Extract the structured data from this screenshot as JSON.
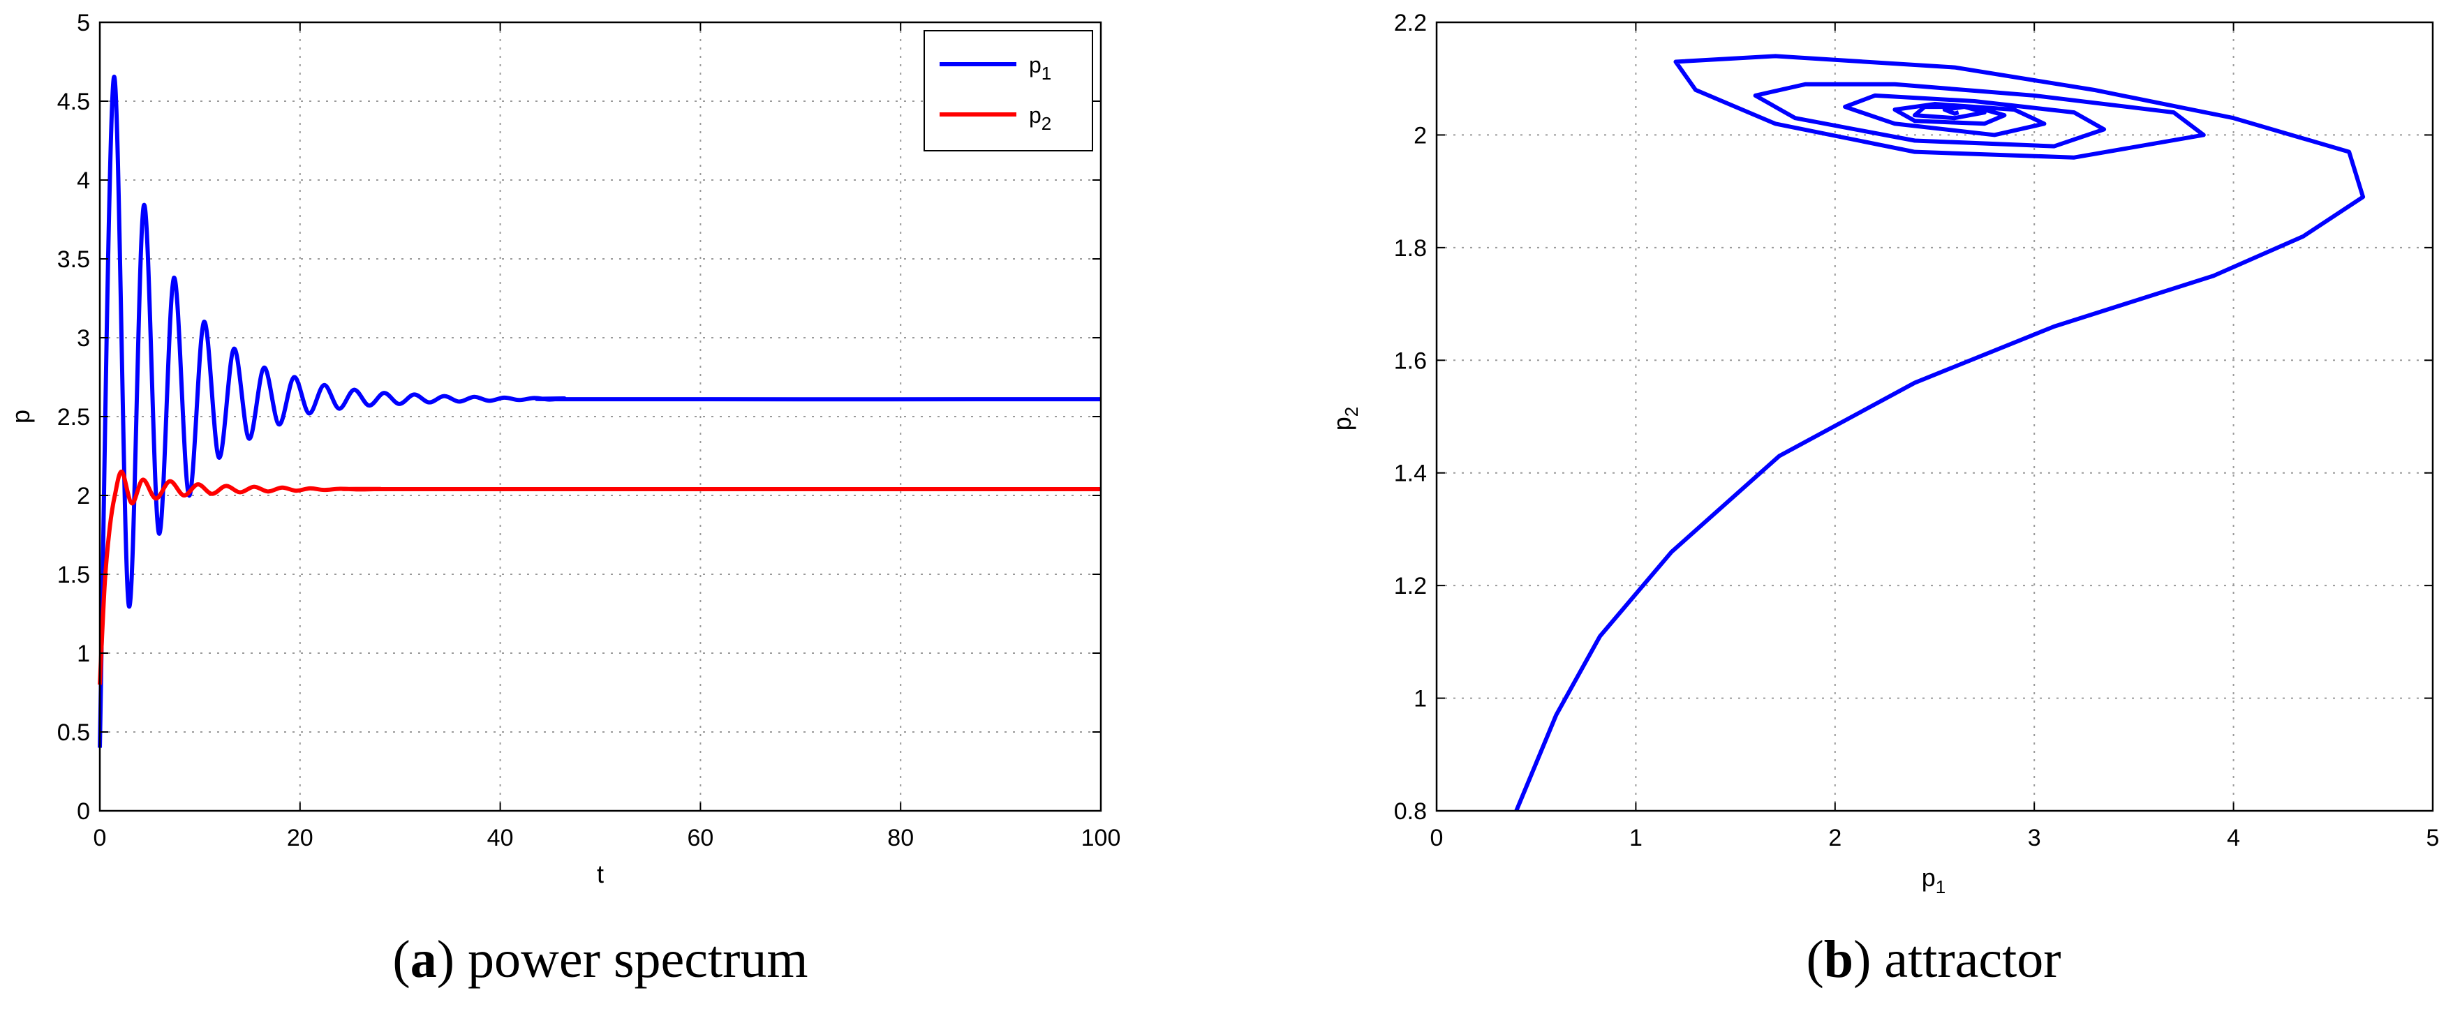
{
  "chart_data": [
    {
      "type": "line",
      "panel": "a",
      "caption_letter": "a",
      "caption_text": ") power spectrum",
      "caption_open": "(",
      "xlabel": "t",
      "ylabel": "p",
      "xlim": [
        0,
        100
      ],
      "ylim": [
        0,
        5
      ],
      "xticks": [
        "0",
        "20",
        "40",
        "60",
        "80",
        "100"
      ],
      "yticks": [
        "0",
        "0.5",
        "1",
        "1.5",
        "2",
        "2.5",
        "3",
        "3.5",
        "4",
        "4.5",
        "5"
      ],
      "grid": true,
      "legend": "top-right",
      "legend_entries": [
        {
          "base": "p",
          "sub": "1",
          "color": "#0000ff"
        },
        {
          "base": "p",
          "sub": "2",
          "color": "#ff0000"
        }
      ],
      "series": [
        {
          "name": "p1",
          "color": "#0000ff",
          "x": [
            0,
            1.4,
            2.9,
            4.4,
            5.9,
            7.4,
            8.9,
            10.4,
            11.9,
            13.4,
            14.9,
            16.4,
            17.9,
            19.4,
            20.9,
            22.4,
            23.9,
            25.4,
            26.9,
            28.4,
            29.9,
            31.4,
            32.9,
            34.4,
            35.9,
            37.4,
            38.9,
            40.4,
            41.9,
            43.4,
            44.9,
            46.4,
            47.9,
            100
          ],
          "y": [
            0.4,
            4.65,
            1.3,
            3.84,
            1.76,
            3.38,
            2.0,
            3.1,
            2.24,
            2.93,
            2.36,
            2.81,
            2.45,
            2.75,
            2.52,
            2.7,
            2.55,
            2.67,
            2.57,
            2.65,
            2.58,
            2.64,
            2.59,
            2.63,
            2.595,
            2.625,
            2.6,
            2.62,
            2.605,
            2.618,
            2.608,
            2.615,
            2.61,
            2.61
          ]
        },
        {
          "name": "p2",
          "color": "#ff0000",
          "x": [
            0,
            0.5,
            1.0,
            1.5,
            2.2,
            3.2,
            4.3,
            5.6,
            7.0,
            8.4,
            9.8,
            11.2,
            12.6,
            14.0,
            15.4,
            16.8,
            18.2,
            19.6,
            21.0,
            22.4,
            24,
            26,
            28,
            30,
            100
          ],
          "y": [
            0.8,
            1.45,
            1.8,
            2.0,
            2.15,
            1.95,
            2.1,
            1.98,
            2.09,
            2.0,
            2.07,
            2.01,
            2.06,
            2.02,
            2.055,
            2.025,
            2.05,
            2.03,
            2.045,
            2.035,
            2.042,
            2.038,
            2.041,
            2.04,
            2.04
          ]
        }
      ]
    },
    {
      "type": "line",
      "panel": "b",
      "caption_letter": "b",
      "caption_text": ") attractor",
      "caption_open": "(",
      "xlabel_base": "p",
      "xlabel_sub": "1",
      "ylabel_base": "p",
      "ylabel_sub": "2",
      "xlim": [
        0,
        5
      ],
      "ylim": [
        0.8,
        2.2
      ],
      "xticks": [
        "0",
        "1",
        "2",
        "3",
        "4",
        "5"
      ],
      "yticks": [
        "0.8",
        "1",
        "1.2",
        "1.4",
        "1.6",
        "1.8",
        "2",
        "2.2"
      ],
      "grid": true,
      "series": [
        {
          "color": "#0000ff",
          "x": [
            0.4,
            0.6,
            0.82,
            1.18,
            1.72,
            2.4,
            3.1,
            3.9,
            4.35,
            4.65,
            4.58,
            4.0,
            3.3,
            2.6,
            1.7,
            1.2,
            1.3,
            1.7,
            2.4,
            3.2,
            3.85,
            3.7,
            3.0,
            2.3,
            1.85,
            1.6,
            1.8,
            2.4,
            3.1,
            3.35,
            3.2,
            2.7,
            2.2,
            2.05,
            2.3,
            2.8,
            3.05,
            2.9,
            2.5,
            2.3,
            2.4,
            2.75,
            2.85,
            2.7,
            2.45,
            2.4,
            2.6,
            2.75,
            2.65,
            2.55,
            2.6,
            2.62
          ],
          "y": [
            0.8,
            0.97,
            1.11,
            1.26,
            1.43,
            1.56,
            1.66,
            1.75,
            1.82,
            1.89,
            1.97,
            2.03,
            2.08,
            2.12,
            2.14,
            2.13,
            2.08,
            2.02,
            1.97,
            1.96,
            2.0,
            2.04,
            2.07,
            2.09,
            2.09,
            2.07,
            2.03,
            1.99,
            1.98,
            2.01,
            2.04,
            2.06,
            2.07,
            2.05,
            2.02,
            2.0,
            2.02,
            2.045,
            2.055,
            2.045,
            2.025,
            2.02,
            2.035,
            2.05,
            2.05,
            2.035,
            2.03,
            2.04,
            2.05,
            2.045,
            2.038,
            2.04
          ]
        }
      ]
    }
  ]
}
